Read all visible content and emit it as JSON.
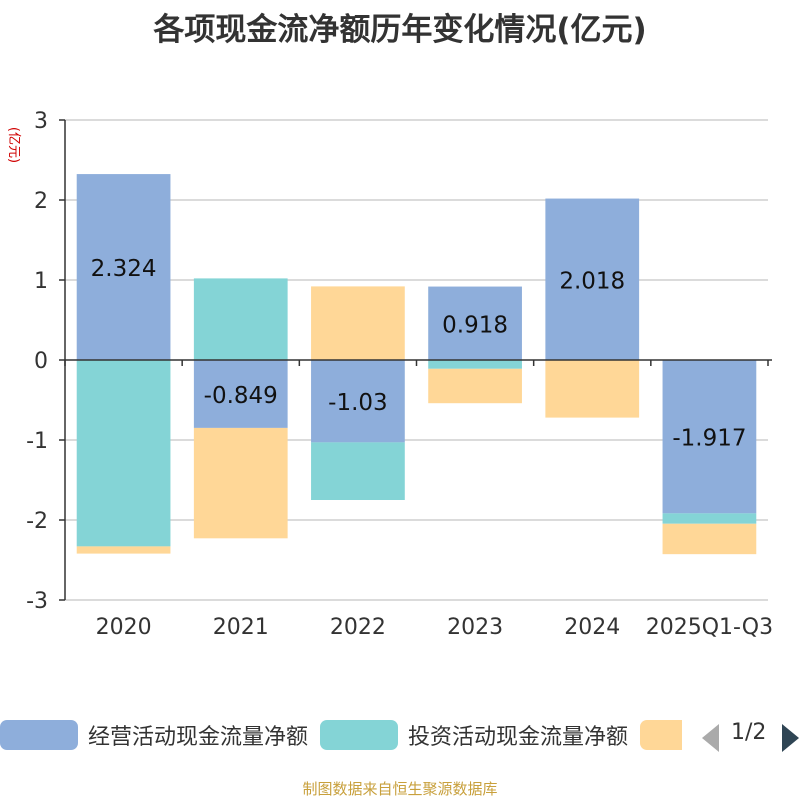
{
  "chart_data": {
    "type": "bar",
    "stacked": true,
    "title": "各项现金流净额历年变化情况(亿元)",
    "ylabel": "(亿元)",
    "ylim": [
      -3,
      3
    ],
    "yticks": [
      3,
      2,
      1,
      0,
      -1,
      -2,
      -3
    ],
    "grid": true,
    "legend_position": "bottom",
    "categories": [
      "2020",
      "2021",
      "2022",
      "2023",
      "2024",
      "2025Q1-Q3"
    ],
    "series": [
      {
        "name": "经营活动现金流量净额",
        "color": "#8eaedb",
        "values": [
          2.324,
          -0.849,
          -1.03,
          0.918,
          2.018,
          -1.917
        ],
        "labels": [
          "2.324",
          "-0.849",
          "-1.03",
          "0.918",
          "2.018",
          "-1.917"
        ]
      },
      {
        "name": "投资活动现金流量净额",
        "color": "#84d4d6",
        "values": [
          -2.33,
          1.02,
          -0.72,
          -0.11,
          0,
          -0.13
        ]
      },
      {
        "name": "",
        "color": "#ffd797",
        "values": [
          -0.09,
          -1.38,
          0.92,
          -0.43,
          -0.72,
          -0.38
        ]
      }
    ]
  },
  "legend": {
    "page": "1/2",
    "prev_icon": "triangle-left-icon",
    "next_icon": "triangle-right-icon"
  },
  "source_note": "制图数据来自恒生聚源数据库"
}
